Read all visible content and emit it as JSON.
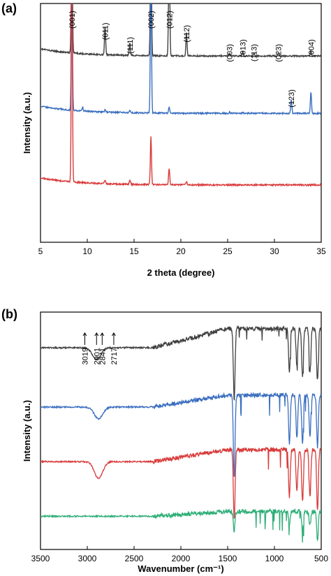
{
  "chart_data": [
    {
      "panel": "(a)",
      "type": "line",
      "xlabel": "2 theta (degree)",
      "ylabel": "Intensity (a.u.)",
      "xlim": [
        5,
        35
      ],
      "xticks": [
        5,
        10,
        15,
        20,
        25,
        30,
        35
      ],
      "y_ticks_shown": false,
      "series": [
        {
          "color": "#404040",
          "baseline": 0.78,
          "peaks": [
            [
              8.35,
              0.6
            ],
            [
              11.9,
              0.12
            ],
            [
              14.55,
              0.05
            ],
            [
              16.8,
              0.6
            ],
            [
              18.75,
              0.6
            ],
            [
              20.6,
              0.1
            ],
            [
              25.2,
              0.01
            ],
            [
              26.6,
              0.02
            ],
            [
              27.8,
              0.01
            ],
            [
              30.4,
              0.01
            ],
            [
              33.9,
              0.02
            ]
          ]
        },
        {
          "color": "#3a6ebf",
          "baseline": 0.54,
          "peaks": [
            [
              8.35,
              0.6
            ],
            [
              9.5,
              0.015
            ],
            [
              11.9,
              0.01
            ],
            [
              14.55,
              0.01
            ],
            [
              16.8,
              0.6
            ],
            [
              18.75,
              0.025
            ],
            [
              25.2,
              0.005
            ],
            [
              26.6,
              0.005
            ],
            [
              31.8,
              0.06
            ],
            [
              33.9,
              0.09
            ]
          ]
        },
        {
          "color": "#d93a3a",
          "baseline": 0.24,
          "peaks": [
            [
              8.35,
              0.9
            ],
            [
              11.9,
              0.015
            ],
            [
              14.55,
              0.02
            ],
            [
              16.8,
              0.2
            ],
            [
              18.75,
              0.07
            ],
            [
              20.6,
              0.015
            ]
          ]
        }
      ],
      "annotations": [
        {
          "text": "(001)",
          "x": 8.35,
          "y": 0.97
        },
        {
          "text": "(011)",
          "x": 11.9,
          "y": 0.92
        },
        {
          "text": "(111)",
          "x": 14.55,
          "y": 0.86
        },
        {
          "text": "(002)",
          "x": 16.8,
          "y": 0.97
        },
        {
          "text": "(012)",
          "x": 18.75,
          "y": 0.97
        },
        {
          "text": "(112)",
          "x": 20.6,
          "y": 0.91
        },
        {
          "text": "(003)",
          "x": 25.2,
          "y": 0.83
        },
        {
          "text": "(013)",
          "x": 26.6,
          "y": 0.85
        },
        {
          "text": "(113)",
          "x": 27.8,
          "y": 0.83
        },
        {
          "text": "(023)",
          "x": 30.4,
          "y": 0.83
        },
        {
          "text": "(004)",
          "x": 33.9,
          "y": 0.85
        },
        {
          "text": "(123)",
          "x": 31.8,
          "y": 0.64
        }
      ]
    },
    {
      "panel": "(b)",
      "type": "line",
      "xlabel": "Wavenumber (cm⁻¹)",
      "ylabel": "Intensity (a.u.)",
      "xlim": [
        3500,
        500
      ],
      "xticks": [
        3500,
        3000,
        2500,
        2000,
        1500,
        1000,
        500
      ],
      "y_ticks_shown": false,
      "series": [
        {
          "color": "#404040",
          "baseline": 0.85,
          "rise": 0.08,
          "dips": [
            [
              2900,
              0.05
            ],
            [
              1430,
              0.3
            ],
            [
              840,
              0.18
            ],
            [
              760,
              0.16
            ],
            [
              700,
              0.2
            ],
            [
              620,
              0.18
            ],
            [
              540,
              0.22
            ]
          ]
        },
        {
          "color": "#3a6ebf",
          "baseline": 0.6,
          "rise": 0.05,
          "dips": [
            [
              2880,
              0.05
            ],
            [
              1430,
              0.35
            ],
            [
              840,
              0.2
            ],
            [
              760,
              0.18
            ],
            [
              700,
              0.2
            ],
            [
              620,
              0.18
            ],
            [
              540,
              0.22
            ]
          ]
        },
        {
          "color": "#d93a3a",
          "baseline": 0.37,
          "rise": 0.05,
          "dips": [
            [
              2880,
              0.07
            ],
            [
              1430,
              0.3
            ],
            [
              840,
              0.2
            ],
            [
              760,
              0.18
            ],
            [
              700,
              0.22
            ],
            [
              620,
              0.2
            ],
            [
              540,
              0.26
            ]
          ]
        },
        {
          "color": "#2fae78",
          "baseline": 0.14,
          "rise": 0.02,
          "dips": [
            [
              1430,
              0.08
            ],
            [
              840,
              0.05
            ],
            [
              700,
              0.08
            ],
            [
              620,
              0.06
            ],
            [
              540,
              0.12
            ]
          ]
        }
      ],
      "annotations": [
        {
          "text": "3019",
          "x": 3019
        },
        {
          "text": "2901",
          "x": 2901
        },
        {
          "text": "2841",
          "x": 2841
        },
        {
          "text": "2717",
          "x": 2717
        }
      ]
    }
  ]
}
